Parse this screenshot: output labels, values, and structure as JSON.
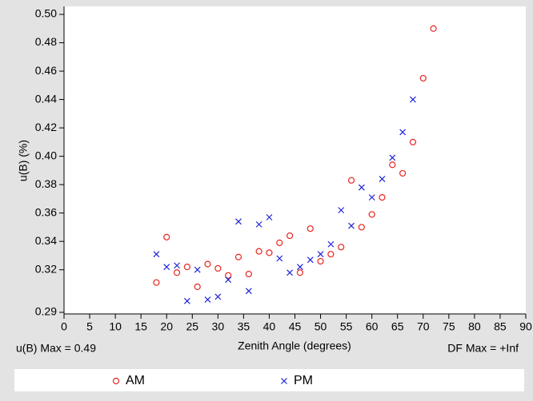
{
  "chart_data": {
    "type": "scatter",
    "x_label": "Zenith Angle (degrees)",
    "y_label": "u(B) (%)",
    "annotations": [
      "u(B) Max = 0.49",
      "DF Max = +Inf"
    ],
    "xlim": [
      0,
      90
    ],
    "xticks": [
      0,
      5,
      10,
      15,
      20,
      25,
      30,
      35,
      40,
      45,
      50,
      55,
      60,
      65,
      70,
      75,
      80,
      85,
      90
    ],
    "ylim": [
      0.29,
      0.5
    ],
    "yticks": [
      0.29,
      0.32,
      0.34,
      0.36,
      0.38,
      {
        "value": 0.4,
        "label": "0.40"
      },
      0.42,
      0.44,
      0.46,
      0.48,
      {
        "value": 0.5,
        "label": "0.50"
      }
    ],
    "series": [
      {
        "name": "AM",
        "color": "#e8251f",
        "marker": "circle",
        "x": [
          18,
          20,
          22,
          24,
          26,
          28,
          30,
          32,
          34,
          36,
          38,
          40,
          42,
          44,
          46,
          48,
          50,
          52,
          54,
          56,
          58,
          60,
          62,
          64,
          66,
          68,
          70,
          72
        ],
        "values": [
          0.311,
          0.343,
          0.318,
          0.322,
          0.308,
          0.324,
          0.321,
          0.316,
          0.329,
          0.317,
          0.333,
          0.332,
          0.339,
          0.344,
          0.318,
          0.349,
          0.326,
          0.331,
          0.336,
          0.383,
          0.35,
          0.359,
          0.371,
          0.394,
          0.388,
          0.41,
          0.455,
          0.49
        ]
      },
      {
        "name": "PM",
        "color": "#1f24d6",
        "marker": "x",
        "x": [
          18,
          20,
          22,
          24,
          26,
          28,
          30,
          32,
          34,
          36,
          38,
          40,
          42,
          44,
          46,
          48,
          50,
          52,
          54,
          56,
          58,
          60,
          62,
          64,
          66,
          68
        ],
        "values": [
          0.331,
          0.322,
          0.323,
          0.298,
          0.32,
          0.299,
          0.301,
          0.313,
          0.354,
          0.305,
          0.352,
          0.357,
          0.328,
          0.318,
          0.322,
          0.327,
          0.331,
          0.338,
          0.362,
          0.351,
          0.378,
          0.371,
          0.384,
          0.399,
          0.417,
          0.44
        ]
      }
    ]
  }
}
